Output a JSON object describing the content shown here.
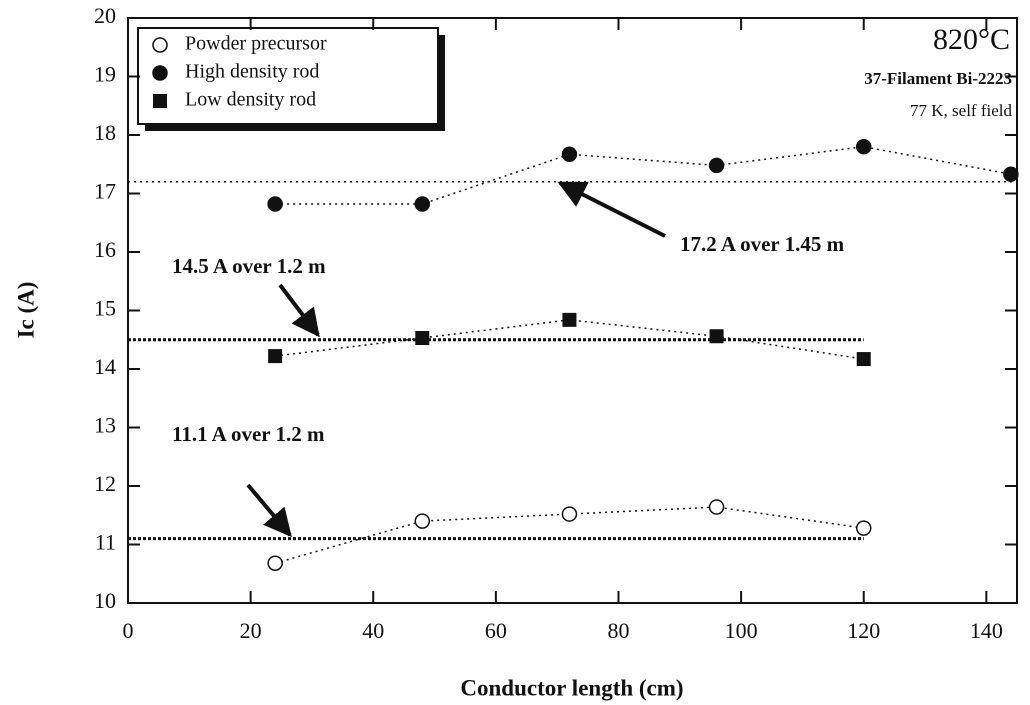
{
  "chart_data": {
    "type": "scatter",
    "xlabel": "Conductor length (cm)",
    "ylabel": "Ic (A)",
    "xlim": [
      0,
      145
    ],
    "ylim": [
      10,
      20
    ],
    "xticks": [
      0,
      20,
      40,
      60,
      80,
      100,
      120,
      140
    ],
    "yticks": [
      10,
      11,
      12,
      13,
      14,
      15,
      16,
      17,
      18,
      19,
      20
    ],
    "legend": "upper left",
    "series": [
      {
        "name": "Powder precursor",
        "color": "#111111",
        "marker": "open-circle",
        "x": [
          24,
          48,
          72,
          96,
          120
        ],
        "values": [
          10.68,
          11.4,
          11.52,
          11.64,
          11.28
        ]
      },
      {
        "name": "High density rod",
        "color": "#111111",
        "marker": "filled-circle",
        "x": [
          24,
          48,
          72,
          96,
          120,
          144
        ],
        "values": [
          16.82,
          16.82,
          17.67,
          17.48,
          17.8,
          17.33
        ]
      },
      {
        "name": "Low density rod",
        "color": "#111111",
        "marker": "filled-square",
        "x": [
          24,
          48,
          72,
          96,
          120
        ],
        "values": [
          14.22,
          14.53,
          14.84,
          14.56,
          14.17
        ]
      }
    ],
    "reference_lines": [
      {
        "value": 17.2,
        "xlim": [
          0,
          145
        ],
        "label": "17.2 A over 1.45 m"
      },
      {
        "value": 14.5,
        "xlim": [
          0,
          120
        ],
        "label": "14.5 A over 1.2 m"
      },
      {
        "value": 11.1,
        "xlim": [
          0,
          120
        ],
        "label": "11.1 A over 1.2 m"
      }
    ],
    "annotations": [
      "820°C",
      "37-Filament Bi-2223",
      "77 K, self field"
    ]
  }
}
